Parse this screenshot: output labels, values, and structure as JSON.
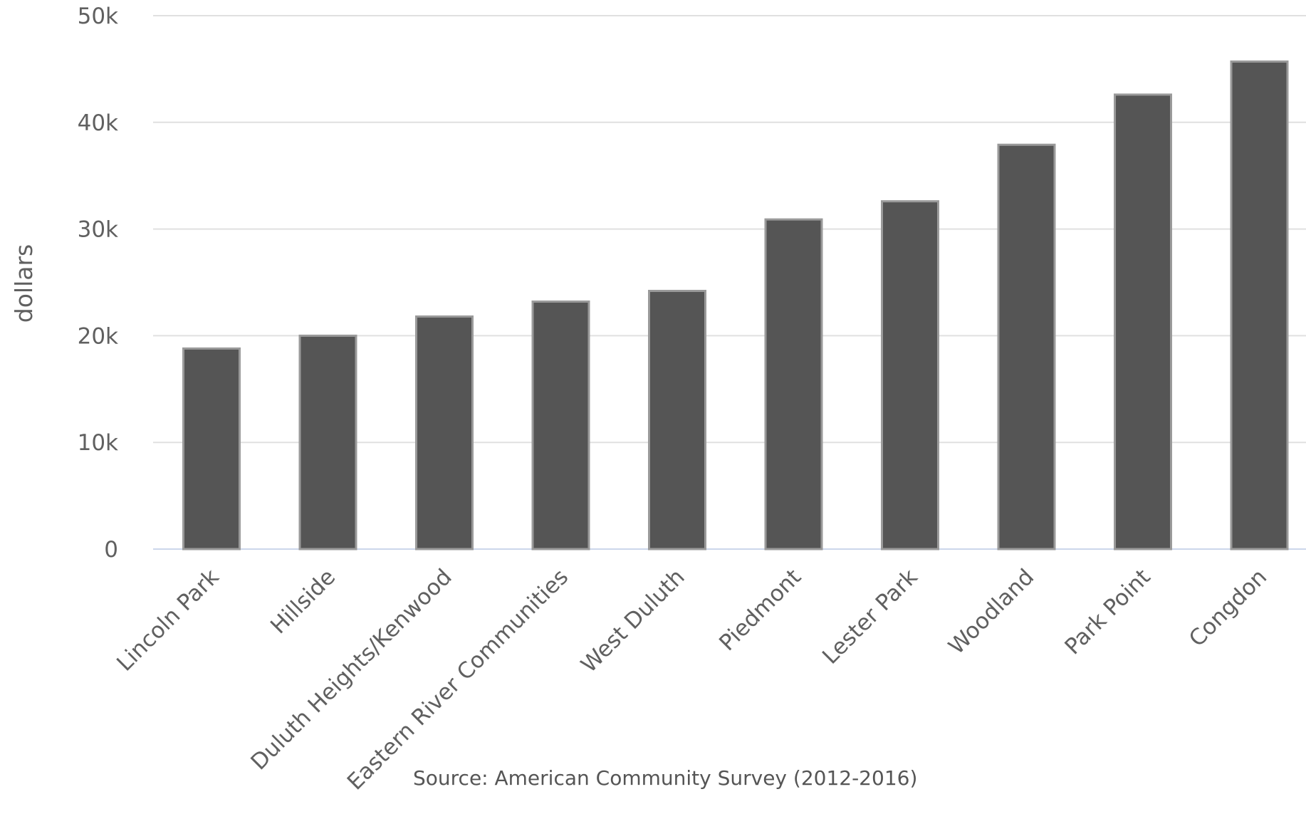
{
  "chart_data": {
    "type": "bar",
    "categories": [
      "Lincoln Park",
      "Hillside",
      "Duluth Heights/Kenwood",
      "Eastern River Communities",
      "West Duluth",
      "Piedmont",
      "Lester Park",
      "Woodland",
      "Park Point",
      "Congdon"
    ],
    "values": [
      18800,
      20000,
      21800,
      23200,
      24200,
      30900,
      32600,
      37900,
      42600,
      45700
    ],
    "ylabel": "dollars",
    "xlabel": "",
    "ylim": [
      0,
      50000
    ],
    "yticks": [
      0,
      10000,
      20000,
      30000,
      40000,
      50000
    ],
    "ytick_labels": [
      "0",
      "10k",
      "20k",
      "30k",
      "40k",
      "50k"
    ],
    "grid": true,
    "legend": "none",
    "source": "Source: American Community Survey (2012-2016)",
    "colors": {
      "bar": "#555555",
      "bar_stroke": "#9a9a9a",
      "grid": "#e0e0e0",
      "baseline": "#ccd6eb",
      "text": "#606060"
    }
  }
}
